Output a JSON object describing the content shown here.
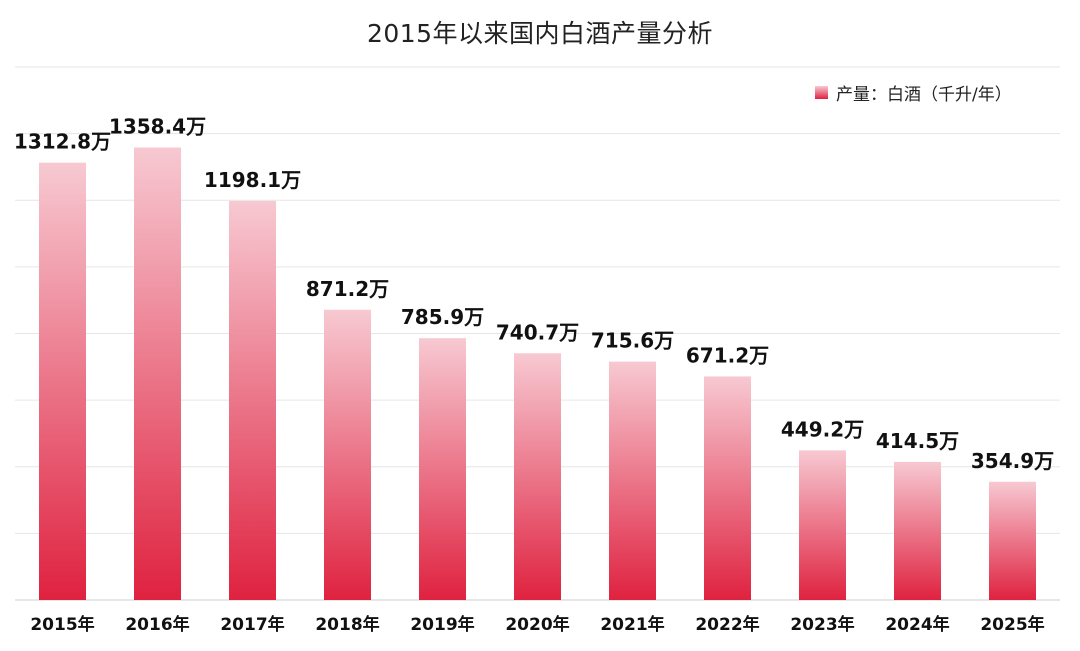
{
  "chart_data": {
    "type": "bar",
    "title": "2015年以来国内白酒产量分析",
    "categories": [
      "2015年",
      "2016年",
      "2017年",
      "2018年",
      "2019年",
      "2020年",
      "2021年",
      "2022年",
      "2023年",
      "2024年",
      "2025年"
    ],
    "series": [
      {
        "name": "产量：白酒（千升/年）",
        "values": [
          1312.8,
          1358.4,
          1198.1,
          871.2,
          785.9,
          740.7,
          715.6,
          671.2,
          449.2,
          414.5,
          354.9
        ]
      }
    ],
    "data_labels": [
      "1312.8万",
      "1358.4万",
      "1198.1万",
      "871.2万",
      "785.9万",
      "740.7万",
      "715.6万",
      "671.2万",
      "449.2万",
      "414.5万",
      "354.9万"
    ],
    "ylim": [
      0,
      1600
    ],
    "grid": true,
    "legend_position": "top-right",
    "bar_color_top": "#f7c9d2",
    "bar_color_bottom": "#df2240"
  }
}
